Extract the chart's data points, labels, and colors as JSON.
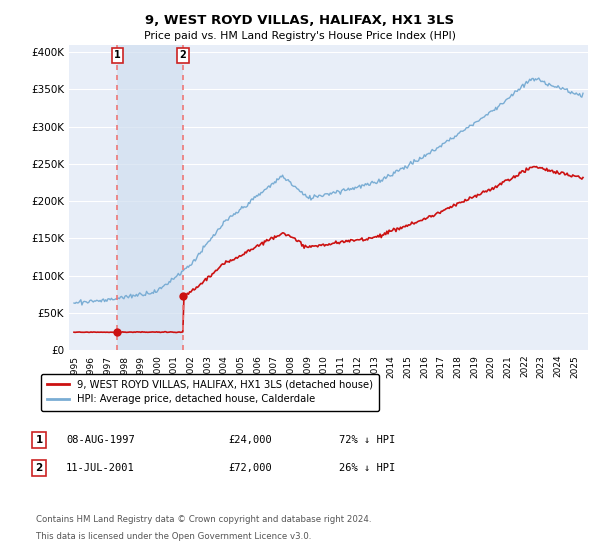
{
  "title": "9, WEST ROYD VILLAS, HALIFAX, HX1 3LS",
  "subtitle": "Price paid vs. HM Land Registry's House Price Index (HPI)",
  "sale1_date_year": 1997.6,
  "sale1_price": 24000,
  "sale1_label": "08-AUG-1997",
  "sale1_amount": "£24,000",
  "sale1_pct": "72% ↓ HPI",
  "sale2_date_year": 2001.53,
  "sale2_price": 72000,
  "sale2_label": "11-JUL-2001",
  "sale2_amount": "£72,000",
  "sale2_pct": "26% ↓ HPI",
  "legend1": "9, WEST ROYD VILLAS, HALIFAX, HX1 3LS (detached house)",
  "legend2": "HPI: Average price, detached house, Calderdale",
  "footer1": "Contains HM Land Registry data © Crown copyright and database right 2024.",
  "footer2": "This data is licensed under the Open Government Licence v3.0.",
  "hpi_color": "#7aadd4",
  "price_color": "#cc1111",
  "vline_color": "#ee7777",
  "bg_color": "#e8eef8",
  "shade_color": "#d0dff0",
  "marker_box_color": "#cc2222",
  "grid_color": "#ffffff",
  "yticks": [
    0,
    50000,
    100000,
    150000,
    200000,
    250000,
    300000,
    350000,
    400000
  ],
  "ylim": [
    0,
    410000
  ],
  "xlim_min": 1994.7,
  "xlim_max": 2025.8
}
